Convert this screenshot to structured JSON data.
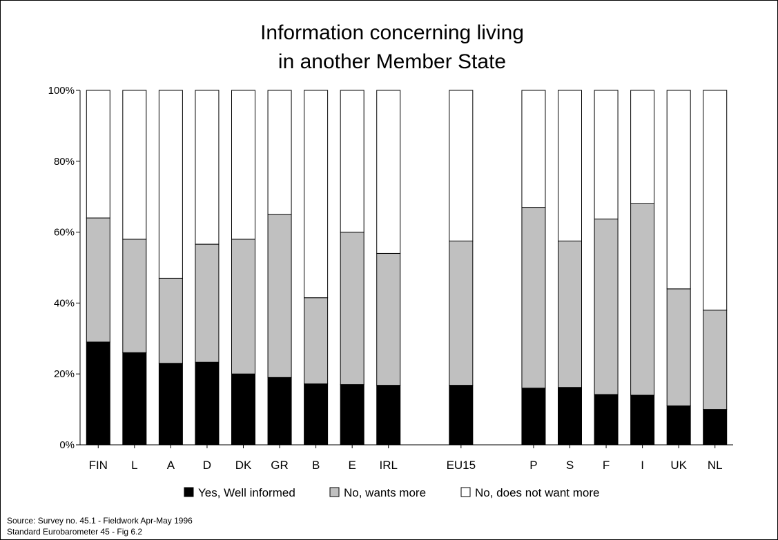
{
  "chart_data": {
    "type": "bar",
    "stacked": true,
    "title_lines": [
      "Information concerning living",
      "in another Member State"
    ],
    "categories": [
      "FIN",
      "L",
      "A",
      "D",
      "DK",
      "GR",
      "B",
      "E",
      "IRL",
      "",
      "EU15",
      "",
      "P",
      "S",
      "F",
      "I",
      "UK",
      "NL"
    ],
    "series": [
      {
        "name": "Yes, Well informed",
        "color": "#000000",
        "values": [
          29,
          26,
          23,
          23.3,
          20,
          19,
          17.2,
          17,
          16.8,
          null,
          16.8,
          null,
          16,
          16.2,
          14.2,
          14,
          11,
          10
        ]
      },
      {
        "name": "No, wants more",
        "color": "#c0c0c0",
        "values": [
          35,
          32,
          24,
          33.3,
          38,
          46,
          24.3,
          43,
          37.2,
          null,
          40.7,
          null,
          51,
          41.3,
          49.5,
          54,
          33,
          28
        ]
      },
      {
        "name": "No, does not want more",
        "color": "#ffffff",
        "values": [
          36,
          42,
          53,
          43.4,
          42,
          35,
          58.5,
          40,
          46,
          null,
          42.5,
          null,
          33,
          42.5,
          36.3,
          32,
          56,
          62
        ]
      }
    ],
    "ylim": [
      0,
      100
    ],
    "yticks": [
      "0%",
      "20%",
      "40%",
      "60%",
      "80%",
      "100%"
    ],
    "legend_position": "bottom",
    "grid": false
  },
  "source_lines": [
    "Source:  Survey no.  45.1 - Fieldwork Apr-May 1996",
    "Standard Eurobarometer 45 - Fig 6.2"
  ]
}
